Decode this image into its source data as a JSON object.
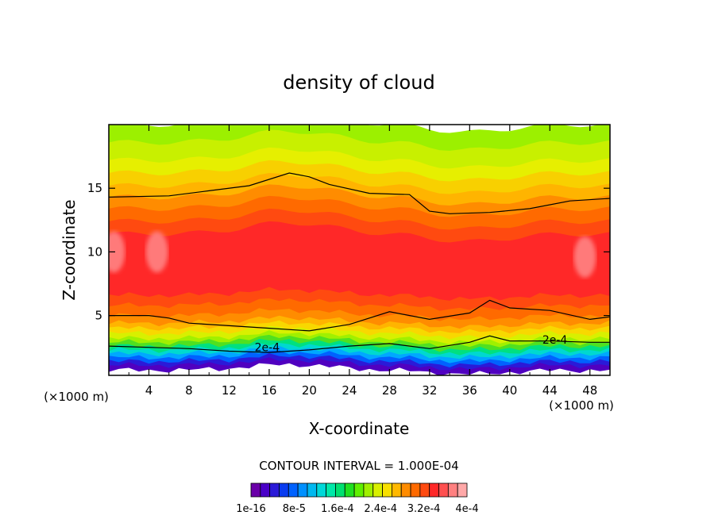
{
  "chart_data": {
    "type": "heatmap",
    "title": "density of cloud",
    "xlabel": "X-coordinate",
    "ylabel": "Z-coordinate",
    "x_unit": "(×1000 m)",
    "xlim": [
      0,
      50
    ],
    "ylim": [
      0.3,
      20
    ],
    "x_ticks": [
      4,
      8,
      12,
      16,
      20,
      24,
      28,
      32,
      36,
      40,
      44,
      48
    ],
    "y_ticks": [
      5,
      10,
      15
    ],
    "contour_interval_text": "CONTOUR INTERVAL = 1.000E-04",
    "contour_labels": [
      {
        "text": "2e-4",
        "x": 15.8,
        "z": 2.5
      },
      {
        "text": "2e-4",
        "x": 44.5,
        "z": 3.1
      }
    ],
    "contour_lines": [
      {
        "level": "2e-4",
        "x": [
          0,
          4,
          8,
          12,
          16,
          20,
          24,
          28,
          32,
          36,
          38,
          40,
          44,
          48,
          50
        ],
        "z": [
          2.6,
          2.5,
          2.4,
          2.2,
          2.1,
          2.3,
          2.6,
          2.8,
          2.4,
          2.9,
          3.4,
          3.0,
          3.0,
          2.9,
          2.9
        ]
      },
      {
        "level": "3e-4",
        "x": [
          0,
          4,
          6,
          8,
          12,
          16,
          20,
          24,
          28,
          32,
          36,
          38,
          40,
          44,
          48,
          50
        ],
        "z": [
          5.0,
          5.0,
          4.8,
          4.4,
          4.2,
          4.0,
          3.8,
          4.3,
          5.3,
          4.7,
          5.2,
          6.2,
          5.6,
          5.4,
          4.7,
          4.9
        ]
      },
      {
        "level": "3e-4",
        "x": [
          0,
          6,
          10,
          14,
          18,
          20,
          22,
          26,
          30,
          32,
          34,
          38,
          42,
          46,
          50
        ],
        "z": [
          14.3,
          14.4,
          14.8,
          15.2,
          16.2,
          15.9,
          15.3,
          14.6,
          14.5,
          13.2,
          13.0,
          13.1,
          13.4,
          14.0,
          14.2
        ]
      }
    ],
    "colorbar": {
      "tick_labels": [
        "1e-16",
        "8e-5",
        "1.6e-4",
        "2.4e-4",
        "3.2e-4",
        "4e-4"
      ],
      "colors": [
        "#6a00a8",
        "#4a00c8",
        "#2b1ad8",
        "#0a3cf0",
        "#0062ff",
        "#0090ff",
        "#00b8f0",
        "#00d8d8",
        "#00e8a8",
        "#00e070",
        "#20e020",
        "#60f000",
        "#a0f000",
        "#d8f000",
        "#f8e000",
        "#ffb800",
        "#ff8c00",
        "#ff6a00",
        "#ff4a10",
        "#ff2828",
        "#ff5050",
        "#ff8080",
        "#ffa8a8"
      ]
    }
  }
}
